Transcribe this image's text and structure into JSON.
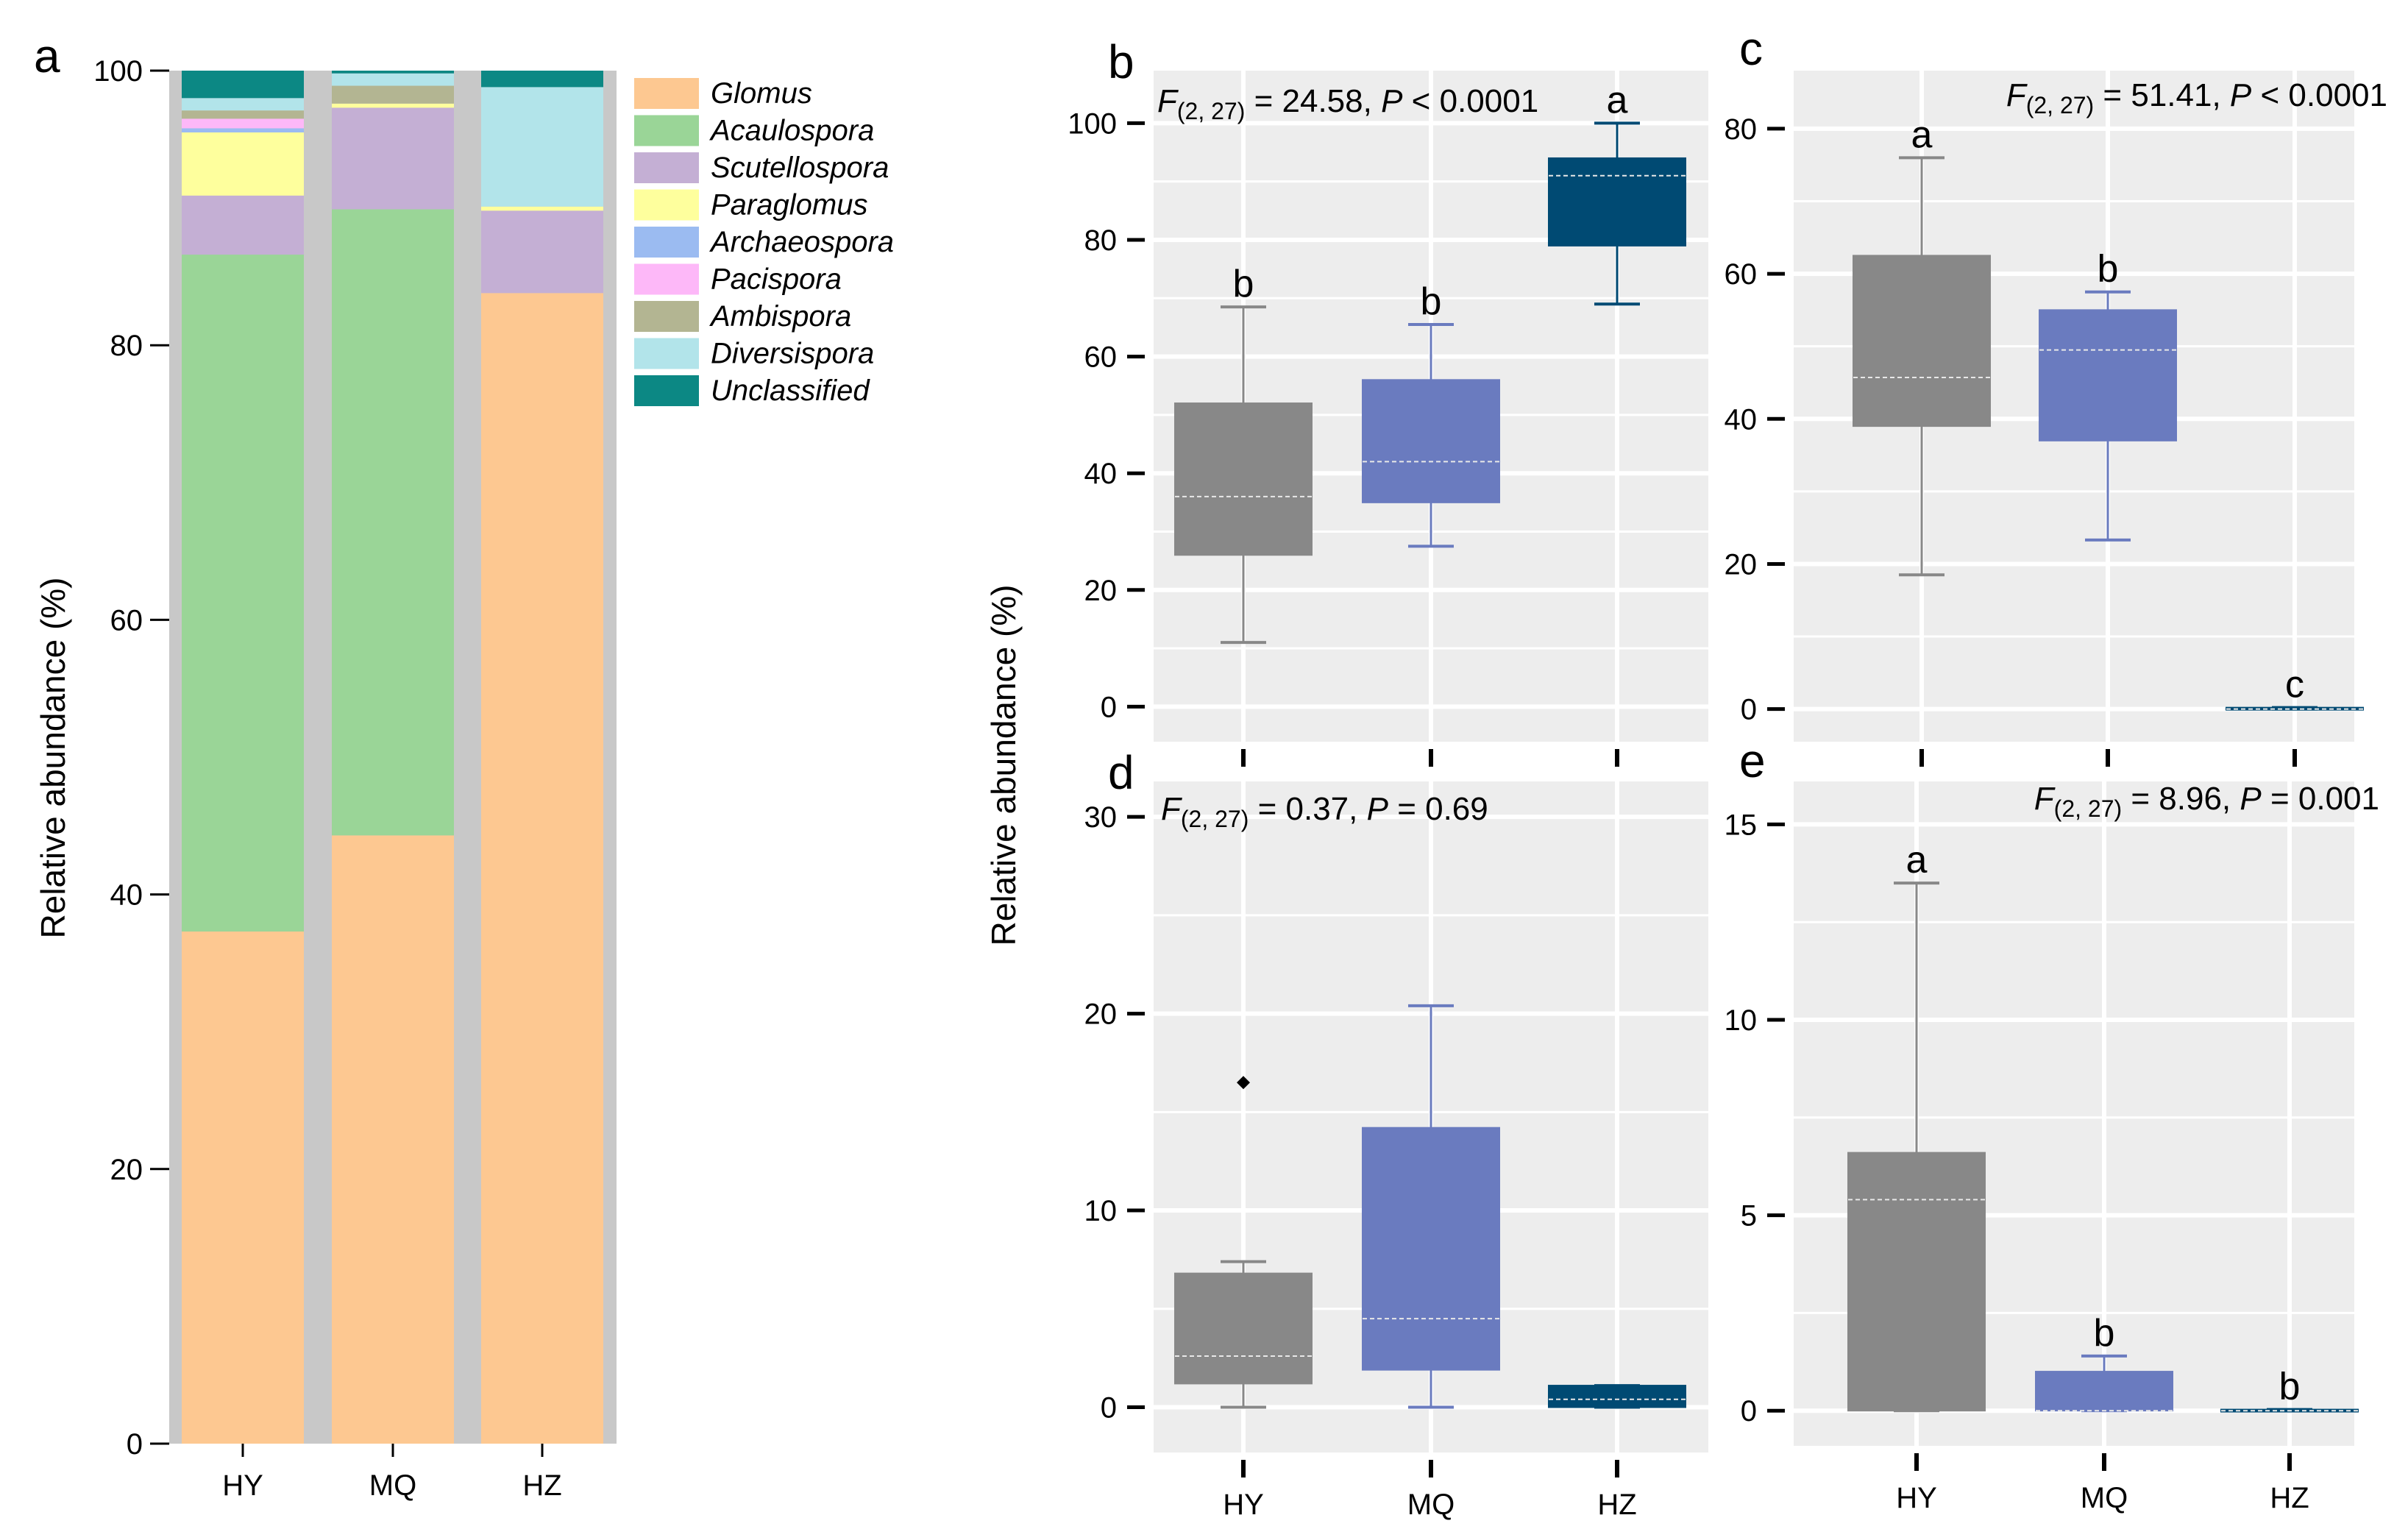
{
  "colors": {
    "HY": "#888888",
    "MQ": "#6a7bbf",
    "HZ": "#004a73",
    "panel_bg": "#ededed",
    "gridline": "#ffffff"
  },
  "y_axis_label": "Relative abundance (%)",
  "chart_data": [
    {
      "id": "a",
      "letter": "a",
      "type": "bar",
      "stacked": true,
      "categories": [
        "HY",
        "MQ",
        "HZ"
      ],
      "ylim": [
        0,
        100
      ],
      "yticks": [
        "0",
        "20",
        "40",
        "60",
        "80",
        "100"
      ],
      "ylabel": "Relative abundance (%)",
      "legend_position": "right",
      "series": [
        {
          "name": "Glomus",
          "color": "#fdc891",
          "values": [
            37.3,
            44.3,
            83.8
          ]
        },
        {
          "name": "Acaulospora",
          "color": "#9ad597",
          "values": [
            49.3,
            45.6,
            0.0
          ]
        },
        {
          "name": "Scutellospora",
          "color": "#c4afd4",
          "values": [
            4.3,
            7.4,
            6.0
          ]
        },
        {
          "name": "Paraglomus",
          "color": "#feff9d",
          "values": [
            4.6,
            0.3,
            0.3
          ]
        },
        {
          "name": "Archaeospora",
          "color": "#9bbbf1",
          "values": [
            0.3,
            0.0,
            0.0
          ]
        },
        {
          "name": "Pacispora",
          "color": "#fdb8f8",
          "values": [
            0.7,
            0.0,
            0.0
          ]
        },
        {
          "name": "Ambispora",
          "color": "#b3b592",
          "values": [
            0.6,
            1.3,
            0.0
          ]
        },
        {
          "name": "Diversispora",
          "color": "#b2e4ea",
          "values": [
            0.9,
            0.9,
            8.7
          ]
        },
        {
          "name": "Unclassified",
          "color": "#0c8884",
          "values": [
            2.0,
            0.2,
            1.2
          ]
        }
      ]
    },
    {
      "id": "b",
      "letter": "b",
      "type": "box",
      "categories": [
        "HY",
        "MQ",
        "HZ"
      ],
      "ylim": [
        -6,
        109
      ],
      "yticks": [
        0,
        20,
        40,
        60,
        80,
        100
      ],
      "stat": {
        "f": "F",
        "sub": "(2, 27)",
        "val": " = 24.58, ",
        "p": "P",
        "rest": " < 0.0001"
      },
      "boxes": [
        {
          "min": 11,
          "q1": 26,
          "median": 36,
          "q3": 52,
          "max": 68.5,
          "outliers": [],
          "label": "b"
        },
        {
          "min": 27.5,
          "q1": 35,
          "median": 42,
          "q3": 56,
          "max": 65.5,
          "outliers": [],
          "label": "b"
        },
        {
          "min": 69,
          "q1": 79,
          "median": 91,
          "q3": 94,
          "max": 100,
          "outliers": [],
          "label": "a"
        }
      ]
    },
    {
      "id": "c",
      "letter": "c",
      "type": "box",
      "categories": [
        "HY",
        "MQ",
        "HZ"
      ],
      "ylim": [
        -4.5,
        88
      ],
      "yticks": [
        0,
        20,
        40,
        60,
        80
      ],
      "stat": {
        "f": "F",
        "sub": "(2, 27)",
        "val": " = 51.41, ",
        "p": "P",
        "rest": " < 0.0001"
      },
      "boxes": [
        {
          "min": 18.5,
          "q1": 39,
          "median": 45.7,
          "q3": 62.5,
          "max": 76,
          "outliers": [],
          "label": "a"
        },
        {
          "min": 23.3,
          "q1": 37,
          "median": 49.5,
          "q3": 55,
          "max": 57.5,
          "outliers": [],
          "label": "b"
        },
        {
          "min": 0,
          "q1": 0,
          "median": 0,
          "q3": 0.2,
          "max": 0.2,
          "outliers": [],
          "label": "c"
        }
      ]
    },
    {
      "id": "d",
      "letter": "d",
      "type": "box",
      "categories": [
        "HY",
        "MQ",
        "HZ"
      ],
      "ylim": [
        -2.3,
        31.8
      ],
      "yticks": [
        0,
        10,
        20,
        30
      ],
      "stat": {
        "f": "F",
        "sub": "(2, 27)",
        "val": " = 0.37, ",
        "p": "P",
        "rest": " = 0.69"
      },
      "boxes": [
        {
          "min": 0,
          "q1": 1.2,
          "median": 2.6,
          "q3": 6.8,
          "max": 7.4,
          "outliers": [
            16.5
          ],
          "label": ""
        },
        {
          "min": 0,
          "q1": 1.9,
          "median": 4.5,
          "q3": 14.2,
          "max": 20.4,
          "outliers": [],
          "label": ""
        },
        {
          "min": 0,
          "q1": 0,
          "median": 0.4,
          "q3": 1.1,
          "max": 1.1,
          "outliers": [],
          "label": ""
        }
      ]
    },
    {
      "id": "e",
      "letter": "e",
      "type": "box",
      "categories": [
        "HY",
        "MQ",
        "HZ"
      ],
      "ylim": [
        -0.9,
        16.1
      ],
      "yticks": [
        0,
        5,
        10,
        15
      ],
      "stat": {
        "f": "F",
        "sub": "(2, 27)",
        "val": " = 8.96, ",
        "p": "P",
        "rest": " = 0.001"
      },
      "boxes": [
        {
          "min": 0,
          "q1": 0,
          "median": 5.4,
          "q3": 6.6,
          "max": 13.5,
          "outliers": [],
          "label": "a"
        },
        {
          "min": 0,
          "q1": 0,
          "median": 0,
          "q3": 1.0,
          "max": 1.4,
          "outliers": [],
          "label": "b"
        },
        {
          "min": 0,
          "q1": 0,
          "median": 0,
          "q3": 0.03,
          "max": 0.03,
          "outliers": [],
          "label": "b"
        }
      ]
    }
  ]
}
